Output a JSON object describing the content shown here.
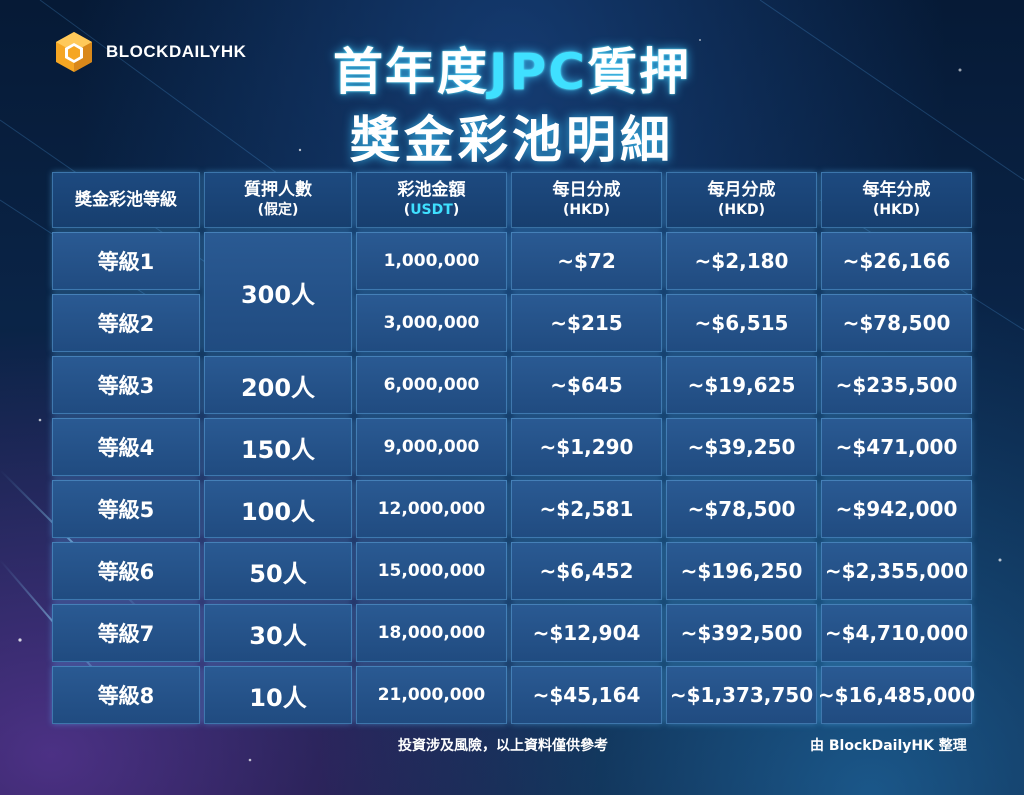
{
  "brand": {
    "name": "BLOCKDAILYHK",
    "logo_icon": "cube-logo-icon"
  },
  "title": {
    "line1_pre": "首年度",
    "line1_accent": "JPC",
    "line1_post": "質押",
    "line2": "獎金彩池明細"
  },
  "colors": {
    "accent": "#3fe0ff",
    "cell": "#2a5a93",
    "background": "#0a2447"
  },
  "table": {
    "headers": [
      {
        "main": "獎金彩池等級",
        "sub": ""
      },
      {
        "main": "質押人數",
        "sub": "(假定)"
      },
      {
        "main": "彩池金額",
        "sub_open": "(",
        "sub_accent": "USDT",
        "sub_close": ")"
      },
      {
        "main": "每日分成",
        "sub": "(HKD)"
      },
      {
        "main": "每月分成",
        "sub": "(HKD)"
      },
      {
        "main": "每年分成",
        "sub": "(HKD)"
      }
    ],
    "rows": [
      {
        "level": "等級1",
        "people": "300人",
        "pool": "1,000,000",
        "daily": "~$72",
        "monthly": "~$2,180",
        "yearly": "~$26,166"
      },
      {
        "level": "等級2",
        "people": "",
        "pool": "3,000,000",
        "daily": "~$215",
        "monthly": "~$6,515",
        "yearly": "~$78,500"
      },
      {
        "level": "等級3",
        "people": "200人",
        "pool": "6,000,000",
        "daily": "~$645",
        "monthly": "~$19,625",
        "yearly": "~$235,500"
      },
      {
        "level": "等級4",
        "people": "150人",
        "pool": "9,000,000",
        "daily": "~$1,290",
        "monthly": "~$39,250",
        "yearly": "~$471,000"
      },
      {
        "level": "等級5",
        "people": "100人",
        "pool": "12,000,000",
        "daily": "~$2,581",
        "monthly": "~$78,500",
        "yearly": "~$942,000"
      },
      {
        "level": "等級6",
        "people": "50人",
        "pool": "15,000,000",
        "daily": "~$6,452",
        "monthly": "~$196,250",
        "yearly": "~$2,355,000"
      },
      {
        "level": "等級7",
        "people": "30人",
        "pool": "18,000,000",
        "daily": "~$12,904",
        "monthly": "~$392,500",
        "yearly": "~$4,710,000"
      },
      {
        "level": "等級8",
        "people": "10人",
        "pool": "21,000,000",
        "daily": "~$45,164",
        "monthly": "~$1,373,750",
        "yearly": "~$16,485,000"
      }
    ]
  },
  "footer": {
    "disclaimer": "投資涉及風險，以上資料僅供參考",
    "credit": "由 BlockDailyHK 整理"
  }
}
